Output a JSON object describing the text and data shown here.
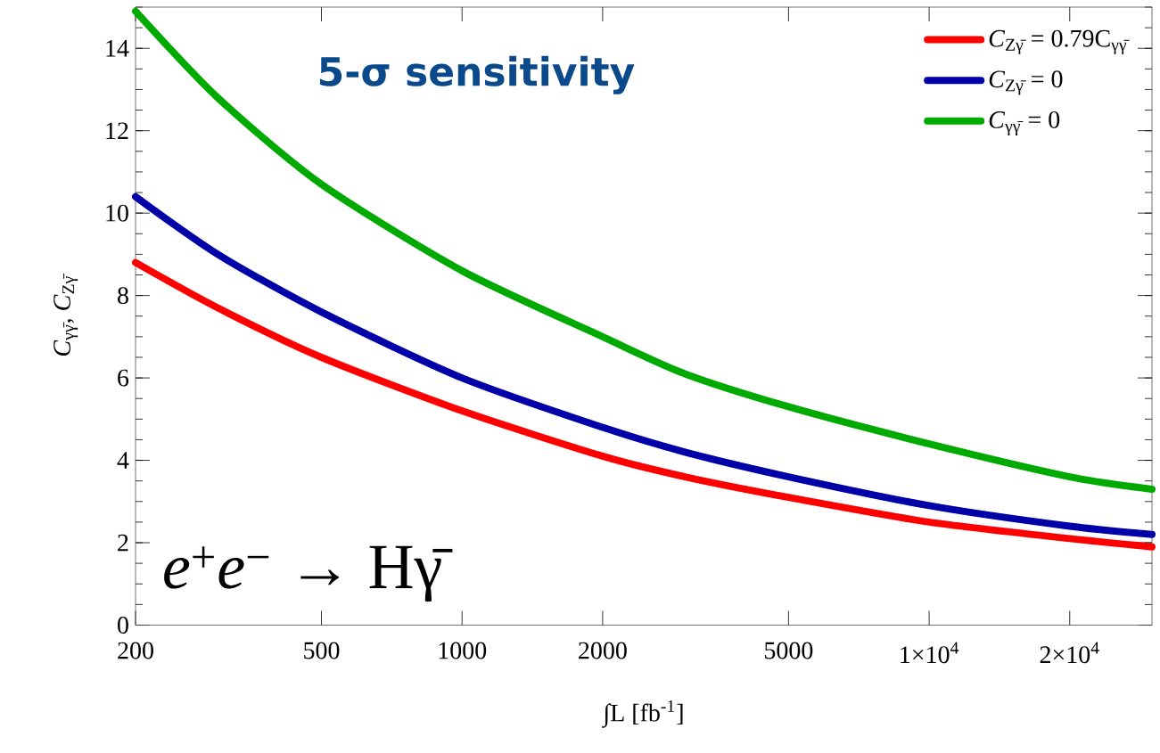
{
  "chart_data": {
    "type": "line",
    "xlabel": "∫L  [fb$^{-1}$]",
    "ylabel": "*C*$_{γγ̄}$,  *C*$_{Zγ̄}$",
    "x": [
      200,
      300,
      500,
      1000,
      2000,
      3000,
      5000,
      10000,
      20000,
      30000
    ],
    "series": [
      {
        "name": "*C*$_{Zγ̄}$ = 0.79C$_{γγ̄}$",
        "color": "#ff0000",
        "values": [
          8.8,
          7.7,
          6.5,
          5.2,
          4.1,
          3.6,
          3.1,
          2.5,
          2.1,
          1.9
        ]
      },
      {
        "name": "*C*$_{Zγ̄}$ = 0",
        "color": "#0000a8",
        "values": [
          10.4,
          9.0,
          7.6,
          6.0,
          4.8,
          4.2,
          3.6,
          2.9,
          2.4,
          2.2
        ]
      },
      {
        "name": "*C*$_{γγ̄}$ = 0",
        "color": "#00aa00",
        "values": [
          14.9,
          12.8,
          10.7,
          8.6,
          7.0,
          6.1,
          5.3,
          4.4,
          3.6,
          3.3
        ]
      }
    ],
    "log": "x",
    "xlim": [
      200,
      30000
    ],
    "ylim": [
      0,
      15
    ],
    "xticks": [
      200,
      500,
      1000,
      2000,
      5000,
      {
        "value": 10000,
        "label": "1×10$^{4}$"
      },
      {
        "value": 20000,
        "label": "2×10$^{4}$"
      }
    ],
    "yticks": [
      0,
      2,
      4,
      6,
      8,
      10,
      12,
      14
    ],
    "legend": "top right",
    "annotations": [
      "5-σ sensitivity",
      "*e*$^{+}$*e*$^{−}$ → Hγ̄"
    ]
  }
}
